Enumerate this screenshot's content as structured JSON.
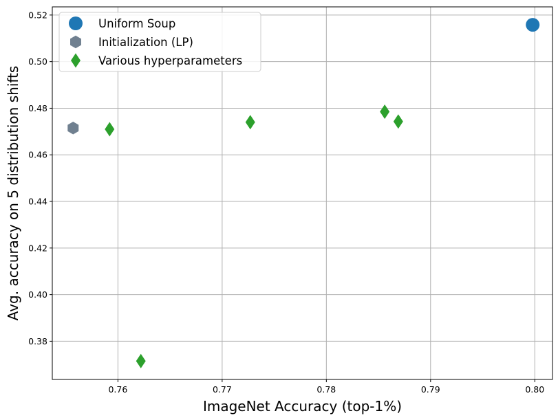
{
  "chart_data": {
    "type": "scatter",
    "title": "",
    "xlabel": "ImageNet Accuracy (top-1%)",
    "ylabel": "Avg. accuracy on 5 distribution shifts",
    "xlim": [
      0.7537,
      0.8017
    ],
    "ylim": [
      0.3636,
      0.5235
    ],
    "grid": true,
    "legend_position": "upper-left",
    "x_ticks": [
      {
        "value": 0.76,
        "label": "0.76"
      },
      {
        "value": 0.77,
        "label": "0.77"
      },
      {
        "value": 0.78,
        "label": "0.78"
      },
      {
        "value": 0.79,
        "label": "0.79"
      },
      {
        "value": 0.8,
        "label": "0.80"
      }
    ],
    "y_ticks": [
      {
        "value": 0.38,
        "label": "0.38"
      },
      {
        "value": 0.4,
        "label": "0.40"
      },
      {
        "value": 0.42,
        "label": "0.42"
      },
      {
        "value": 0.44,
        "label": "0.44"
      },
      {
        "value": 0.46,
        "label": "0.46"
      },
      {
        "value": 0.48,
        "label": "0.48"
      },
      {
        "value": 0.5,
        "label": "0.50"
      },
      {
        "value": 0.52,
        "label": "0.52"
      }
    ],
    "series": [
      {
        "name": "Uniform Soup",
        "marker": "circle",
        "color": "#1f77b4",
        "points": [
          {
            "x": 0.7998,
            "y": 0.5158
          }
        ]
      },
      {
        "name": "Initialization (LP)",
        "marker": "hexagon",
        "color": "#708090",
        "points": [
          {
            "x": 0.7557,
            "y": 0.4715
          }
        ]
      },
      {
        "name": "Various hyperparameters",
        "marker": "diamond",
        "color": "#2ca02c",
        "points": [
          {
            "x": 0.7592,
            "y": 0.471
          },
          {
            "x": 0.7622,
            "y": 0.3715
          },
          {
            "x": 0.7727,
            "y": 0.474
          },
          {
            "x": 0.7856,
            "y": 0.4785
          },
          {
            "x": 0.7869,
            "y": 0.4743
          }
        ]
      }
    ]
  }
}
